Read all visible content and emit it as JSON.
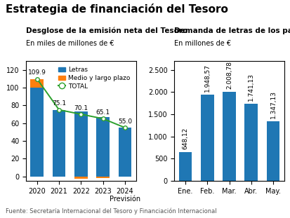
{
  "title": "Estrategia de financiación del Tesoro",
  "annotations": [
    "Fuente: Secretaría Internacional del Tesoro y Financiación Internacional"
  ],
  "chart_data": [
    {
      "type": "bar",
      "stacked": true,
      "title": "Desglose de la emisión neta del Tesoro",
      "subtitle": "En miles de millones de €",
      "categories": [
        "2020",
        "2021",
        "2022",
        "2023",
        "2024\nPrevisión"
      ],
      "series": [
        {
          "name": "Letras",
          "values": [
            100.0,
            75.1,
            73.0,
            67.0,
            55.0
          ]
        },
        {
          "name": "Medio y largo plazo",
          "values": [
            9.9,
            0.0,
            -2.9,
            -1.9,
            0.0
          ]
        },
        {
          "name": "TOTAL",
          "type": "line",
          "marker": "o",
          "values": [
            109.9,
            75.1,
            70.1,
            65.1,
            55.0
          ],
          "data_labels": true,
          "value_labels": [
            "109.9",
            "75.1",
            "70.1",
            "65.1",
            "55.0"
          ]
        }
      ],
      "ylim": [
        -5,
        130
      ],
      "yticks": [
        0,
        20,
        40,
        60,
        80,
        100,
        120
      ],
      "legend": "upper right"
    },
    {
      "type": "bar",
      "title": "Demanda de letras de los partic",
      "subtitle": "En millones de €",
      "categories": [
        "Ene.",
        "Feb.",
        "Mar.",
        "Abr.",
        "May."
      ],
      "values": [
        648.12,
        1948.57,
        2008.78,
        1741.13,
        1347.13
      ],
      "data_labels": true,
      "value_labels": [
        "648,12",
        "1.948,57",
        "2.008,78",
        "1.741,13",
        "1.347,13"
      ],
      "ylim": [
        0,
        2700
      ],
      "yticks": [
        0,
        500,
        {
          "value": 1000,
          "label": "1.000"
        },
        {
          "value": 1500,
          "label": "1.500"
        },
        {
          "value": 2000,
          "label": "2.000"
        },
        {
          "value": 2500,
          "label": "2.500"
        }
      ]
    }
  ]
}
